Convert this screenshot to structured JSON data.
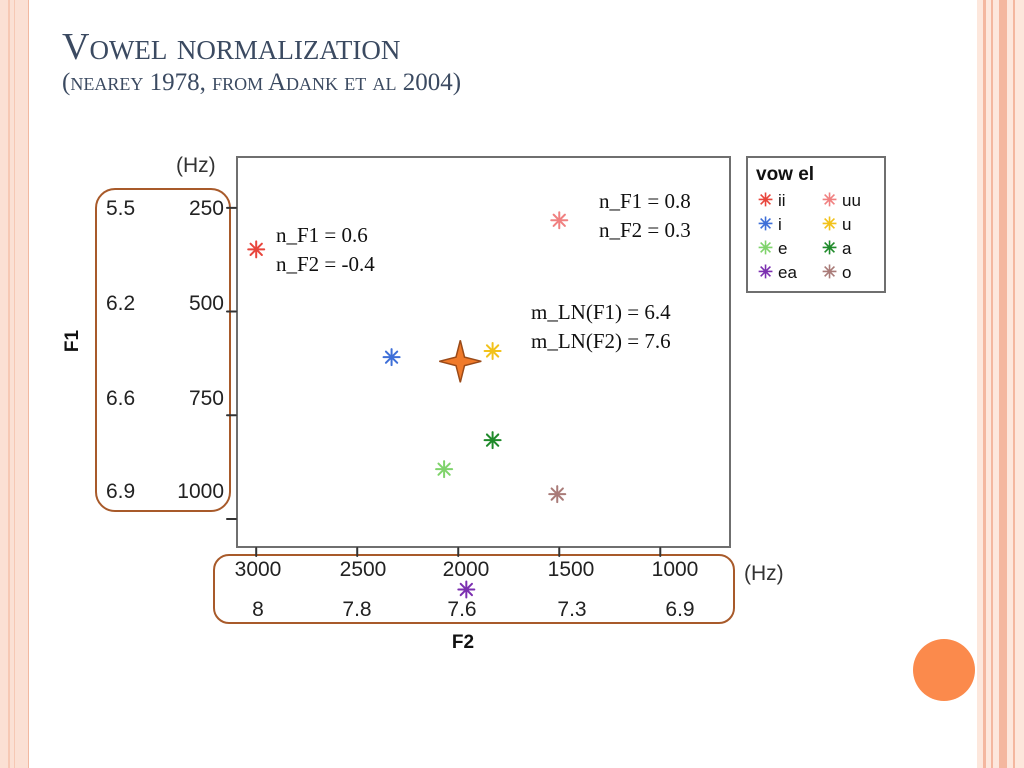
{
  "slide": {
    "title": "Vowel normalization",
    "subtitle": "(nearey 1978, from Adank et al 2004)"
  },
  "decor": {
    "accent": "#fb8a4c",
    "bracket_color": "#a85a2a"
  },
  "chart_data": {
    "type": "scatter",
    "xlabel": "F2",
    "ylabel": "F1",
    "x_unit": "(Hz)",
    "y_unit": "(Hz)",
    "x_reversed": true,
    "y_reversed": true,
    "xlim": [
      3100,
      650
    ],
    "ylim": [
      1070,
      125
    ],
    "x_ticks": [
      {
        "hz": "3000",
        "norm": "8"
      },
      {
        "hz": "2500",
        "norm": "7.8"
      },
      {
        "hz": "2000",
        "norm": "7.6"
      },
      {
        "hz": "1500",
        "norm": "7.3"
      },
      {
        "hz": "1000",
        "norm": "6.9"
      }
    ],
    "y_ticks": [
      {
        "hz": "250",
        "norm": "5.5"
      },
      {
        "hz": "500",
        "norm": "6.2"
      },
      {
        "hz": "750",
        "norm": "6.6"
      },
      {
        "hz": "1000",
        "norm": "6.9"
      }
    ],
    "legend_title": "vow el",
    "points": [
      {
        "vowel": "ii",
        "f2": 3000,
        "f1": 350,
        "color": "#e8453c"
      },
      {
        "vowel": "uu",
        "f2": 1500,
        "f1": 280,
        "color": "#f08080"
      },
      {
        "vowel": "i",
        "f2": 2330,
        "f1": 610,
        "color": "#3e6fd8"
      },
      {
        "vowel": "u",
        "f2": 1830,
        "f1": 595,
        "color": "#f2c21a"
      },
      {
        "vowel": "e",
        "f2": 2070,
        "f1": 880,
        "color": "#7fd36b"
      },
      {
        "vowel": "a",
        "f2": 1830,
        "f1": 810,
        "color": "#1f8a2a"
      },
      {
        "vowel": "ea",
        "f2": 1960,
        "f1": 1170,
        "color": "#7b2fb0"
      },
      {
        "vowel": "o",
        "f2": 1510,
        "f1": 940,
        "color": "#a97b78"
      }
    ],
    "mean_point": {
      "f2": 1990,
      "f1": 620,
      "color": "#f07a2a"
    },
    "annotations": [
      {
        "line1": "n_F1 = 0.6",
        "line2": "n_F2 = -0.4"
      },
      {
        "line1": "n_F1 = 0.8",
        "line2": "n_F2 = 0.3"
      },
      {
        "line1": "m_LN(F1) = 6.4",
        "line2": "m_LN(F2) = 7.6"
      }
    ]
  }
}
